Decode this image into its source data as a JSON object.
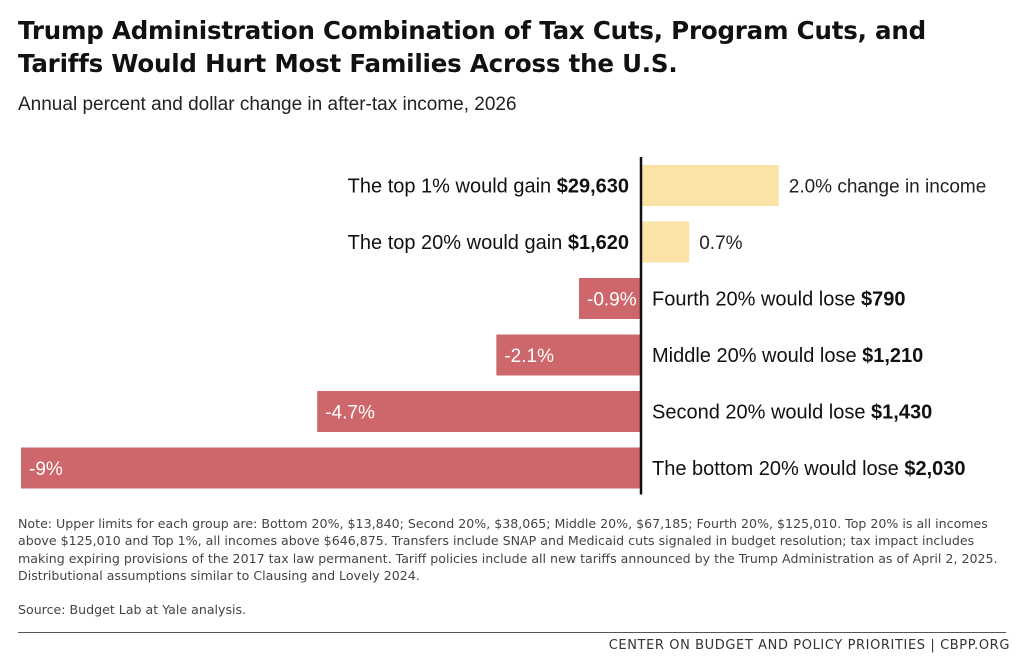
{
  "title": "Trump Administration Combination of Tax Cuts, Program Cuts, and Tariffs Would Hurt Most Families Across the U.S.",
  "subtitle": "Annual percent and dollar change in after-tax income, 2026",
  "note": "Note: Upper limits for each group are: Bottom 20%, $13,840; Second 20%, $38,065; Middle 20%, $67,185; Fourth 20%, $125,010. Top 20% is all incomes above $125,010 and Top 1%, all incomes above $646,875. Transfers include SNAP and Medicaid cuts signaled in budget resolution; tax impact includes making expiring provisions of the 2017 tax law permanent. Tariff policies include all new tariffs announced by the Trump Administration as of April 2, 2025. Distributional assumptions similar to Clausing and Lovely 2024.",
  "source": "Source: Budget Lab at Yale analysis.",
  "footer": "CENTER ON BUDGET AND POLICY PRIORITIES | CBPP.ORG",
  "colors": {
    "gain": "#fbe3a6",
    "loss": "#cd676b",
    "axis": "#111111"
  },
  "chart_data": {
    "type": "bar",
    "orientation": "horizontal",
    "xlim": [
      -9,
      3
    ],
    "categories": [
      "The top 1% would gain $29,630",
      "The top 20% would gain $1,620",
      "Fourth 20% would lose $790",
      "Middle 20% would lose $1,210",
      "Second 20% would lose $1,430",
      "The bottom 20% would lose $2,030"
    ],
    "rows": [
      {
        "prefix": "The top 1% would gain ",
        "amount": "$29,630",
        "value": 2.0,
        "value_label": "2.0% change in income"
      },
      {
        "prefix": "The top 20% would gain ",
        "amount": "$1,620",
        "value": 0.7,
        "value_label": "0.7%"
      },
      {
        "prefix": "Fourth 20% would lose ",
        "amount": "$790",
        "value": -0.9,
        "value_label": "-0.9%"
      },
      {
        "prefix": "Middle 20% would lose ",
        "amount": "$1,210",
        "value": -2.1,
        "value_label": "-2.1%"
      },
      {
        "prefix": "Second 20% would lose ",
        "amount": "$1,430",
        "value": -4.7,
        "value_label": "-4.7%"
      },
      {
        "prefix": "The bottom 20% would lose ",
        "amount": "$2,030",
        "value": -9,
        "value_label": "-9%"
      }
    ],
    "values": [
      2.0,
      0.7,
      -0.9,
      -2.1,
      -4.7,
      -9
    ]
  }
}
